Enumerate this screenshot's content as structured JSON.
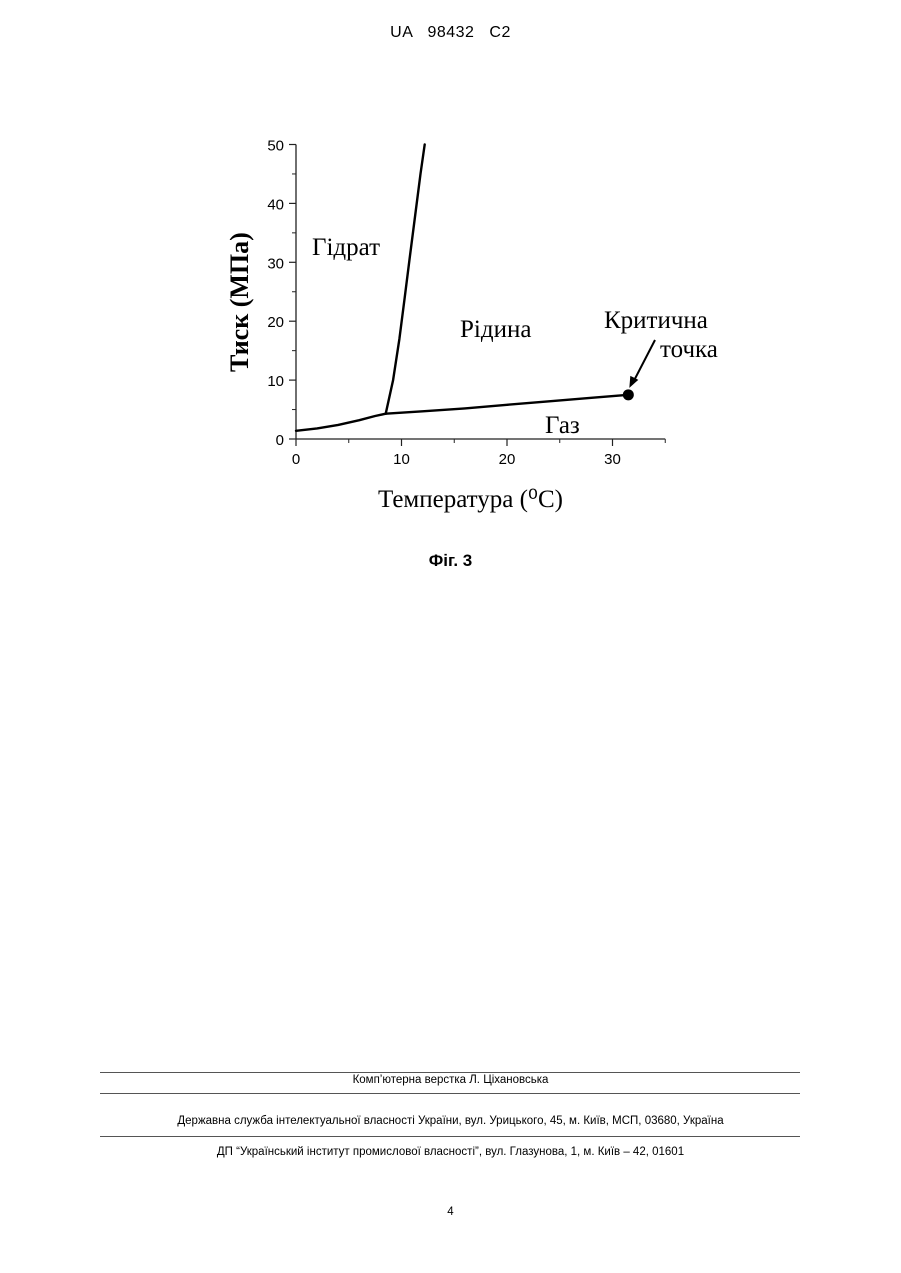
{
  "header": {
    "doc_id": "UA   98432   C2"
  },
  "chart_data": {
    "type": "line",
    "xlabel": "Температура (⁰С)",
    "ylabel": "Тиск (МПа)",
    "xlim": [
      0,
      35
    ],
    "ylim": [
      0,
      50
    ],
    "x_ticks": [
      0,
      10,
      20,
      30
    ],
    "y_ticks": [
      0,
      10,
      20,
      30,
      40,
      50
    ],
    "grid": false,
    "series": [
      {
        "x": [
          0,
          2,
          4,
          6,
          7.5,
          8.5
        ],
        "y": [
          1.4,
          1.8,
          2.4,
          3.2,
          3.9,
          4.3
        ]
      },
      {
        "x": [
          8.5,
          9.2,
          9.8,
          10.3,
          10.8,
          11.3,
          11.8,
          12.2
        ],
        "y": [
          4.3,
          10,
          17,
          24,
          31,
          38,
          45,
          50
        ]
      },
      {
        "x": [
          8.5,
          12,
          16,
          20,
          24,
          28,
          31.5
        ],
        "y": [
          4.3,
          4.7,
          5.2,
          5.8,
          6.4,
          7.0,
          7.5
        ]
      }
    ],
    "critical_point": {
      "x": 31.5,
      "y": 7.5
    },
    "annotations": [
      {
        "text": "Гідрат"
      },
      {
        "text": "Рідина"
      },
      {
        "text": "Газ"
      },
      {
        "text": "Критична"
      },
      {
        "text": "точка"
      }
    ]
  },
  "caption": "Фіг. 3",
  "footer": {
    "line1": "Комп’ютерна верстка Л. Ціхановська",
    "line2": "Державна служба інтелектуальної власності України, вул. Урицького, 45, м. Київ, МСП, 03680, Україна",
    "line3": "ДП “Український інститут промислової власності”, вул. Глазунова, 1, м. Київ – 42, 01601"
  },
  "page_number": "4"
}
